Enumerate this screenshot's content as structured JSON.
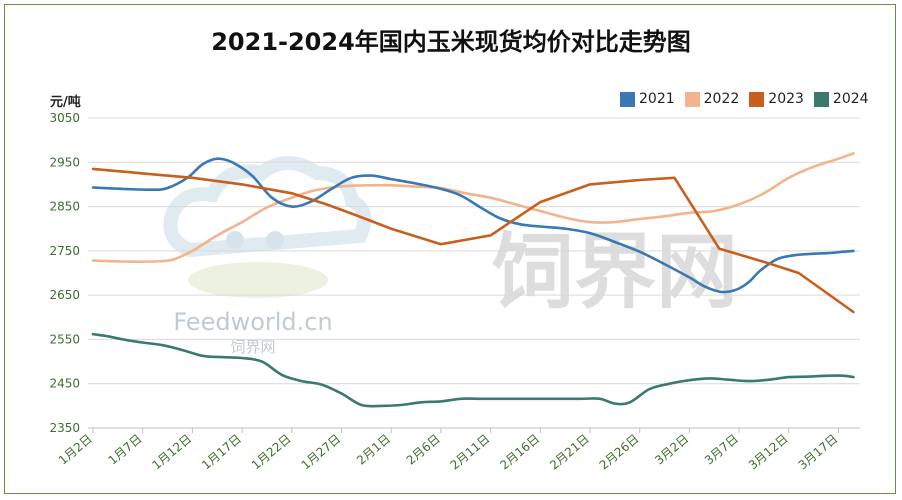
{
  "title": "2021-2024年国内玉米现货均价对比走势图",
  "chart_data": {
    "type": "line",
    "title": "2021-2024年国内玉米现货均价对比走势图",
    "ylabel": "元/吨",
    "xlabel": "",
    "ylim": [
      2350,
      3050
    ],
    "yticks": [
      3050,
      2950,
      2850,
      2750,
      2650,
      2550,
      2450,
      2350
    ],
    "categories": [
      "1月2日",
      "1月7日",
      "1月12日",
      "1月17日",
      "1月22日",
      "1月27日",
      "2月1日",
      "2月6日",
      "2月11日",
      "2月16日",
      "2月21日",
      "2月26日",
      "3月2日",
      "3月7日",
      "3月12日",
      "3月17日"
    ],
    "grid": true,
    "legend_position": "top-right",
    "series": [
      {
        "name": "2021",
        "color": "#3a78b4",
        "x": [
          0,
          0.6,
          1.2,
          1.5,
          1.9,
          2.2,
          2.5,
          2.8,
          3.2,
          3.6,
          4.0,
          4.4,
          4.8,
          5.2,
          5.6,
          6.0,
          6.5,
          7.0,
          7.4,
          7.8,
          8.2,
          8.6,
          9.0,
          9.5,
          10.0,
          10.5,
          11.0,
          11.5,
          12.0,
          12.3,
          12.6,
          12.8,
          13.0,
          13.2,
          13.4,
          13.6,
          13.8,
          14.1,
          14.4,
          14.8,
          15.1,
          15.3
        ],
        "values": [
          2893,
          2890,
          2888,
          2892,
          2915,
          2945,
          2958,
          2950,
          2920,
          2870,
          2850,
          2862,
          2890,
          2915,
          2920,
          2912,
          2902,
          2890,
          2875,
          2848,
          2823,
          2810,
          2805,
          2800,
          2790,
          2770,
          2748,
          2720,
          2690,
          2670,
          2658,
          2658,
          2665,
          2680,
          2703,
          2720,
          2733,
          2740,
          2743,
          2745,
          2748,
          2750
        ]
      },
      {
        "name": "2022",
        "color": "#f2b48d",
        "x": [
          0,
          0.6,
          1.2,
          1.6,
          2.0,
          2.5,
          3.0,
          3.5,
          4.0,
          4.4,
          4.8,
          5.2,
          5.6,
          6.0,
          6.5,
          7.0,
          7.5,
          8.0,
          8.5,
          9.0,
          9.5,
          10.0,
          10.5,
          11.0,
          11.5,
          12.0,
          12.5,
          13.0,
          13.5,
          14.0,
          14.5,
          15.0,
          15.3
        ],
        "values": [
          2728,
          2726,
          2726,
          2730,
          2750,
          2785,
          2815,
          2848,
          2870,
          2885,
          2893,
          2897,
          2898,
          2898,
          2895,
          2892,
          2880,
          2870,
          2855,
          2840,
          2825,
          2815,
          2815,
          2822,
          2828,
          2836,
          2840,
          2855,
          2880,
          2915,
          2940,
          2958,
          2970
        ]
      },
      {
        "name": "2023",
        "color": "#c85f1e",
        "x": [
          0,
          1.0,
          2.0,
          3.0,
          4.0,
          4.7,
          5.3,
          6.0,
          7.0,
          8.0,
          9.0,
          10.0,
          11.0,
          11.7,
          12.6,
          13.5,
          14.2,
          15.3
        ],
        "values": [
          2935,
          2925,
          2915,
          2900,
          2880,
          2855,
          2830,
          2800,
          2765,
          2785,
          2860,
          2900,
          2910,
          2915,
          2755,
          2725,
          2700,
          2612
        ]
      },
      {
        "name": "2024",
        "color": "#3a7a6e",
        "x": [
          0,
          0.3,
          0.6,
          1.0,
          1.4,
          1.8,
          2.2,
          2.6,
          3.0,
          3.4,
          3.8,
          4.2,
          4.6,
          5.0,
          5.4,
          5.8,
          6.2,
          6.6,
          7.0,
          7.4,
          7.8,
          8.2,
          8.6,
          9.0,
          9.4,
          9.8,
          10.2,
          10.5,
          10.8,
          11.2,
          11.6,
          12.0,
          12.4,
          12.8,
          13.2,
          13.6,
          14.0,
          14.4,
          14.8,
          15.1,
          15.3
        ],
        "values": [
          2562,
          2557,
          2550,
          2543,
          2537,
          2526,
          2513,
          2510,
          2508,
          2500,
          2470,
          2456,
          2448,
          2428,
          2402,
          2400,
          2402,
          2408,
          2410,
          2416,
          2416,
          2416,
          2416,
          2416,
          2416,
          2416,
          2416,
          2405,
          2408,
          2438,
          2450,
          2458,
          2462,
          2459,
          2456,
          2459,
          2465,
          2466,
          2468,
          2468,
          2465
        ]
      }
    ]
  },
  "watermark": {
    "main": "饲界网",
    "brand": "Feedworld.cn",
    "brand_cn": "饲界网"
  }
}
